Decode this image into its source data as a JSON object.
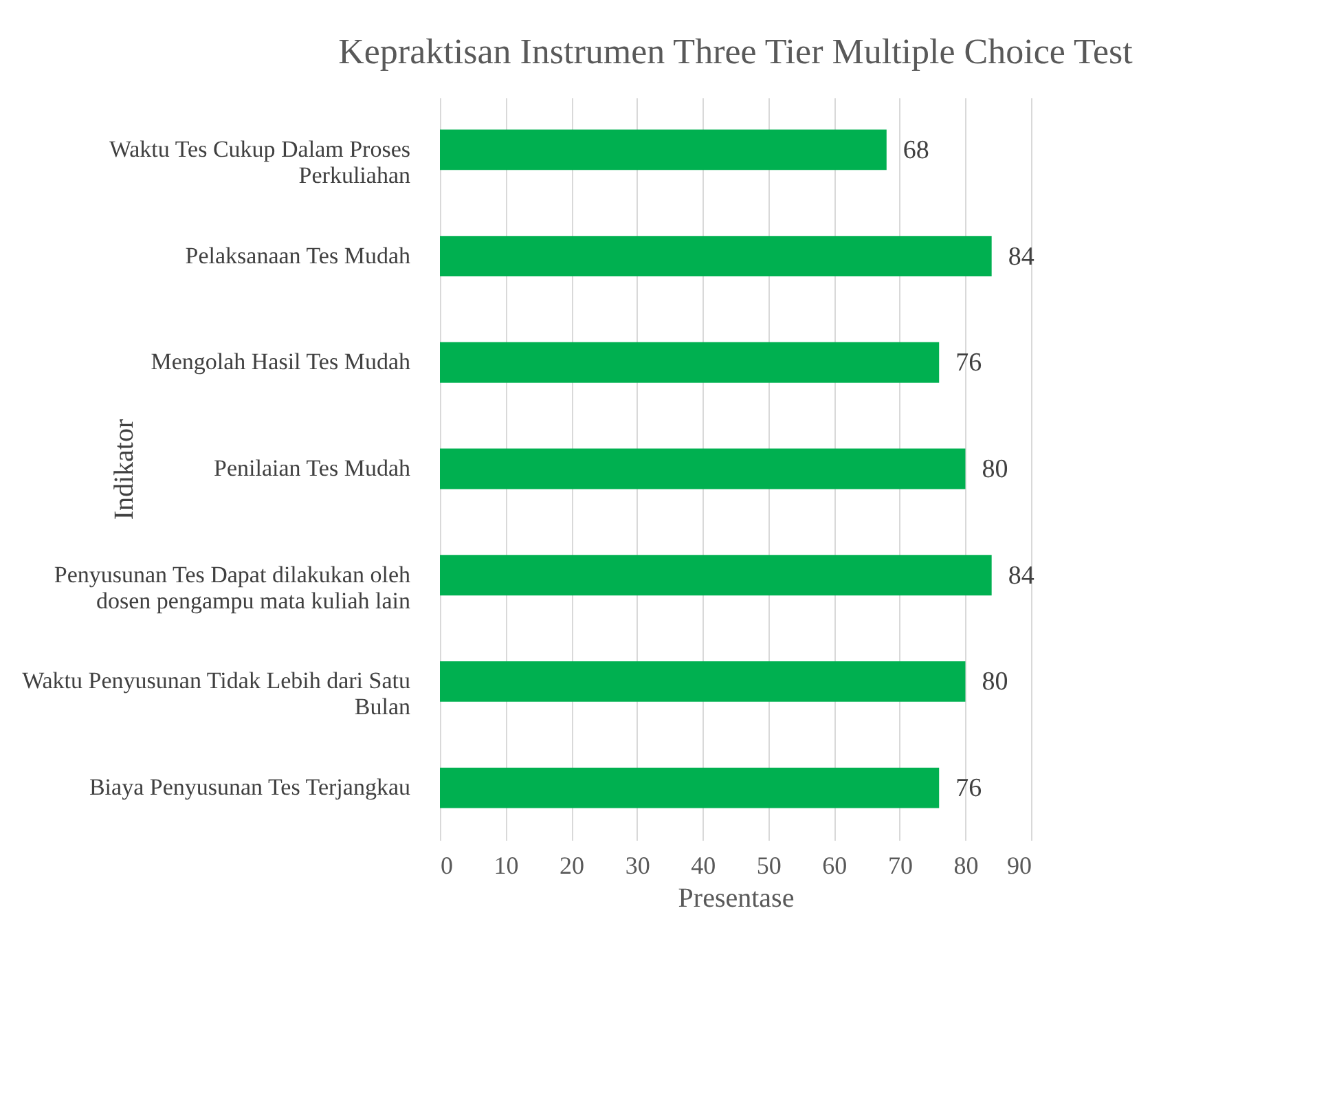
{
  "chart_data": {
    "type": "bar",
    "orientation": "horizontal",
    "title": "Kepraktisan Instrumen Three Tier Multiple Choice Test",
    "xlabel": "Presentase",
    "ylabel": "Indikator",
    "categories": [
      "Waktu Tes Cukup Dalam Proses Perkuliahan",
      "Pelaksanaan Tes Mudah",
      "Mengolah Hasil Tes Mudah",
      "Penilaian Tes Mudah",
      "Penyusunan Tes Dapat dilakukan oleh dosen pengampu mata kuliah lain",
      "Waktu Penyusunan Tidak Lebih dari Satu Bulan",
      "Biaya Penyusunan Tes Terjangkau"
    ],
    "values": [
      68,
      84,
      76,
      80,
      84,
      80,
      76
    ],
    "color": "#00b050",
    "xlim": [
      0,
      90
    ],
    "xticks": [
      0,
      10,
      20,
      30,
      40,
      50,
      60,
      70,
      80,
      90
    ],
    "grid": "x",
    "data_labels": true
  }
}
